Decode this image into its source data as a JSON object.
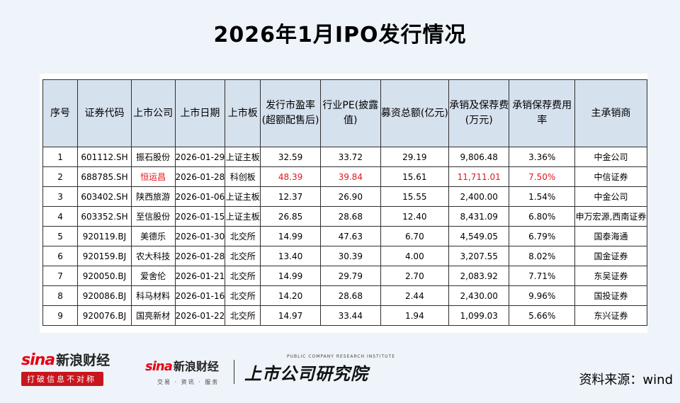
{
  "title": "2026年1月IPO发行情况",
  "table": {
    "headers": [
      "序号",
      "证券代码",
      "上市公司",
      "上市日期",
      "上市板",
      "发行市盈率(超额配售后)",
      "行业PE(披露值)",
      "募资总额(亿元)",
      "承销及保荐费(万元)",
      "承销保荐费用率",
      "主承销商"
    ],
    "rows": [
      {
        "no": "1",
        "code": "601112.SH",
        "company": "振石股份",
        "date": "2026-01-29",
        "board": "上证主板",
        "pe": "32.59",
        "industry_pe": "33.72",
        "raise": "29.19",
        "fee": "9,806.48",
        "rate": "3.36%",
        "underwriter": "中金公司"
      },
      {
        "no": "2",
        "code": "688785.SH",
        "company": "恒运昌",
        "date": "2026-01-28",
        "board": "科创板",
        "pe": "48.39",
        "industry_pe": "39.84",
        "raise": "15.61",
        "fee": "11,711.01",
        "rate": "7.50%",
        "underwriter": "中信证券"
      },
      {
        "no": "3",
        "code": "603402.SH",
        "company": "陕西旅游",
        "date": "2026-01-06",
        "board": "上证主板",
        "pe": "12.37",
        "industry_pe": "26.90",
        "raise": "15.55",
        "fee": "2,400.00",
        "rate": "1.54%",
        "underwriter": "中金公司"
      },
      {
        "no": "4",
        "code": "603352.SH",
        "company": "至信股份",
        "date": "2026-01-15",
        "board": "上证主板",
        "pe": "26.85",
        "industry_pe": "28.68",
        "raise": "12.40",
        "fee": "8,431.09",
        "rate": "6.80%",
        "underwriter": "申万宏源,西南证券"
      },
      {
        "no": "5",
        "code": "920119.BJ",
        "company": "美德乐",
        "date": "2026-01-30",
        "board": "北交所",
        "pe": "14.99",
        "industry_pe": "47.63",
        "raise": "6.70",
        "fee": "4,549.05",
        "rate": "6.79%",
        "underwriter": "国泰海通"
      },
      {
        "no": "6",
        "code": "920159.BJ",
        "company": "农大科技",
        "date": "2026-01-28",
        "board": "北交所",
        "pe": "13.40",
        "industry_pe": "30.39",
        "raise": "4.00",
        "fee": "3,207.55",
        "rate": "8.02%",
        "underwriter": "国金证券"
      },
      {
        "no": "7",
        "code": "920050.BJ",
        "company": "爱舍伦",
        "date": "2026-01-21",
        "board": "北交所",
        "pe": "14.99",
        "industry_pe": "29.79",
        "raise": "2.70",
        "fee": "2,083.92",
        "rate": "7.71%",
        "underwriter": "东吴证券"
      },
      {
        "no": "8",
        "code": "920086.BJ",
        "company": "科马材料",
        "date": "2026-01-16",
        "board": "北交所",
        "pe": "14.20",
        "industry_pe": "28.68",
        "raise": "2.44",
        "fee": "2,430.00",
        "rate": "9.96%",
        "underwriter": "国投证券"
      },
      {
        "no": "9",
        "code": "920076.BJ",
        "company": "国亮新材",
        "date": "2026-01-22",
        "board": "北交所",
        "pe": "14.97",
        "industry_pe": "33.44",
        "raise": "1.94",
        "fee": "1,099.03",
        "rate": "5.66%",
        "underwriter": "东兴证券"
      }
    ],
    "highlight_row_index": 1,
    "highlight_color": "#e3161b",
    "header_bg": "#d6e1ee"
  },
  "footer": {
    "logo1_sina": "sina",
    "logo1_cn": "新浪财经",
    "logo1_slogan": "打破信息不对称",
    "logo2_sina": "sina",
    "logo2_cn": "新浪财经",
    "logo2_services": "交易 · 资讯 · 服务",
    "institute_cn": "上市公司研究院",
    "institute_en": "PUBLIC COMPANY RESEARCH INSTITUTE",
    "source": "资料来源：wind"
  }
}
